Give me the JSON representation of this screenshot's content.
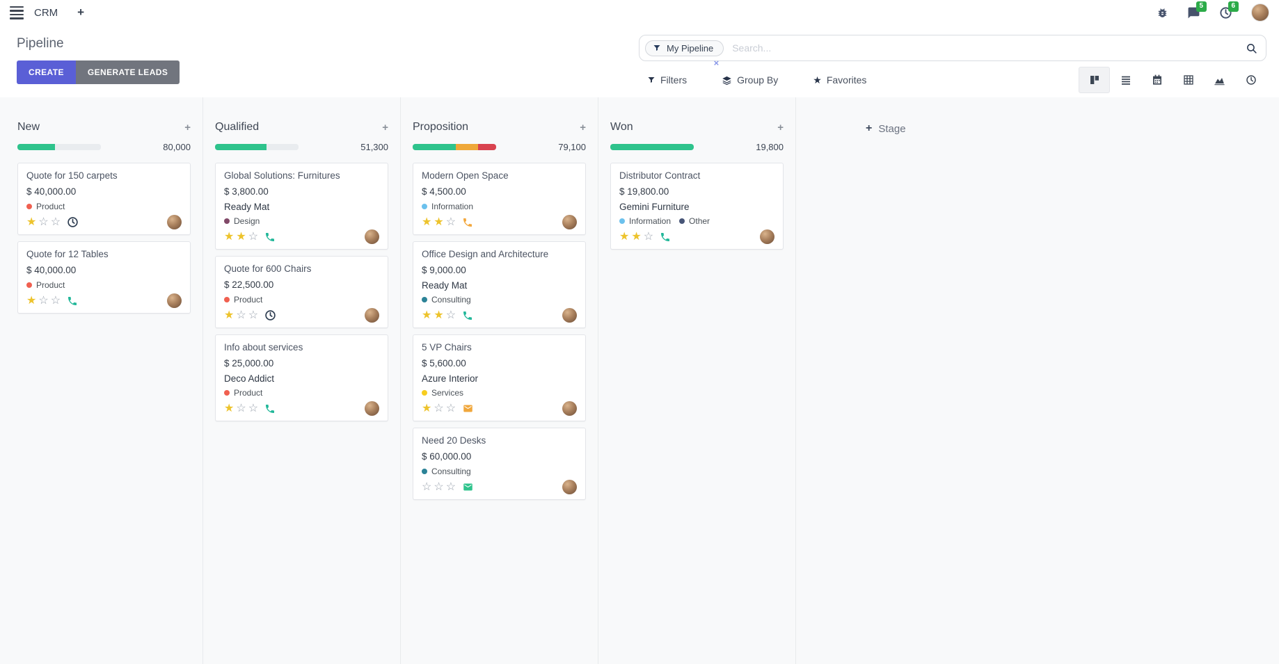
{
  "nav": {
    "app_name": "CRM",
    "message_badge": "5",
    "activity_badge": "6"
  },
  "icons": {
    "plus": "+",
    "close": "×",
    "star_filled": "★",
    "star_empty": "☆",
    "favorites_star": "★"
  },
  "control_panel": {
    "title": "Pipeline",
    "create_label": "CREATE",
    "generate_leads_label": "GENERATE LEADS",
    "filters_label": "Filters",
    "group_by_label": "Group By",
    "favorites_label": "Favorites"
  },
  "search": {
    "facet_label": "My Pipeline",
    "placeholder": "Search..."
  },
  "board": {
    "stage_add_label": "Stage",
    "columns": [
      {
        "name": "New",
        "total": "80,000",
        "progress": [
          {
            "status": "success",
            "color": "#2ec38c",
            "pct": 45
          },
          {
            "status": "empty",
            "color": "#e9ecef",
            "pct": 55
          }
        ],
        "cards": [
          {
            "title": "Quote for 150 carpets",
            "amount": "$ 40,000.00",
            "partner": "",
            "tags": [
              {
                "color": "#f06050",
                "label": "Product"
              }
            ],
            "stars": 1,
            "activity": "clock"
          },
          {
            "title": "Quote for 12 Tables",
            "amount": "$ 40,000.00",
            "partner": "",
            "tags": [
              {
                "color": "#f06050",
                "label": "Product"
              }
            ],
            "stars": 1,
            "activity": "phone-green"
          }
        ]
      },
      {
        "name": "Qualified",
        "total": "51,300",
        "progress": [
          {
            "status": "success",
            "color": "#2ec38c",
            "pct": 62
          },
          {
            "status": "empty",
            "color": "#e9ecef",
            "pct": 38
          }
        ],
        "cards": [
          {
            "title": "Global Solutions: Furnitures",
            "amount": "$ 3,800.00",
            "partner": "Ready Mat",
            "tags": [
              {
                "color": "#814968",
                "label": "Design"
              }
            ],
            "stars": 2,
            "activity": "phone-green"
          },
          {
            "title": "Quote for 600 Chairs",
            "amount": "$ 22,500.00",
            "partner": "",
            "tags": [
              {
                "color": "#f06050",
                "label": "Product"
              }
            ],
            "stars": 1,
            "activity": "clock"
          },
          {
            "title": "Info about services",
            "amount": "$ 25,000.00",
            "partner": "Deco Addict",
            "tags": [
              {
                "color": "#f06050",
                "label": "Product"
              }
            ],
            "stars": 1,
            "activity": "phone-green"
          }
        ]
      },
      {
        "name": "Proposition",
        "total": "79,100",
        "progress": [
          {
            "status": "success",
            "color": "#2ec38c",
            "pct": 52
          },
          {
            "status": "warning",
            "color": "#efa839",
            "pct": 26
          },
          {
            "status": "danger",
            "color": "#d9434f",
            "pct": 22
          }
        ],
        "cards": [
          {
            "title": "Modern Open Space",
            "amount": "$ 4,500.00",
            "partner": "",
            "tags": [
              {
                "color": "#6cc1ed",
                "label": "Information"
              }
            ],
            "stars": 2,
            "activity": "phone-orange"
          },
          {
            "title": "Office Design and Architecture",
            "amount": "$ 9,000.00",
            "partner": "Ready Mat",
            "tags": [
              {
                "color": "#2c8397",
                "label": "Consulting"
              }
            ],
            "stars": 2,
            "activity": "phone-green"
          },
          {
            "title": "5 VP Chairs",
            "amount": "$ 5,600.00",
            "partner": "Azure Interior",
            "tags": [
              {
                "color": "#f7cd1f",
                "label": "Services"
              }
            ],
            "stars": 1,
            "activity": "mail-orange"
          },
          {
            "title": "Need 20 Desks",
            "amount": "$ 60,000.00",
            "partner": "",
            "tags": [
              {
                "color": "#2c8397",
                "label": "Consulting"
              }
            ],
            "stars": 0,
            "activity": "mail-green"
          }
        ]
      },
      {
        "name": "Won",
        "total": "19,800",
        "progress": [
          {
            "status": "success",
            "color": "#2ec38c",
            "pct": 100
          }
        ],
        "cards": [
          {
            "title": "Distributor Contract",
            "amount": "$ 19,800.00",
            "partner": "Gemini Furniture",
            "tags": [
              {
                "color": "#6cc1ed",
                "label": "Information"
              },
              {
                "color": "#475577",
                "label": "Other"
              }
            ],
            "stars": 2,
            "activity": "phone-green"
          }
        ]
      }
    ]
  }
}
